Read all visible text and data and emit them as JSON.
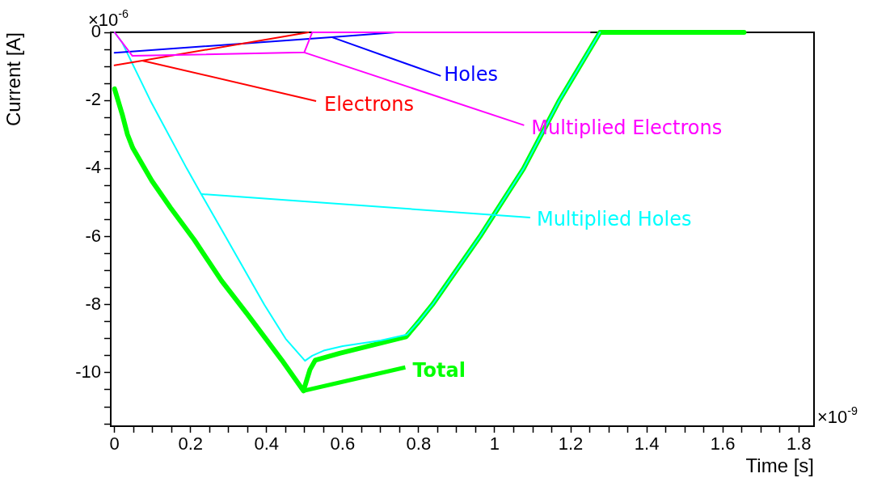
{
  "chart_data": {
    "type": "line",
    "xlabel": "Time [s]",
    "ylabel": "Current [A]",
    "xlim": [
      -0.01,
      1.84
    ],
    "ylim": [
      -11.57,
      0
    ],
    "xticks": [
      0,
      {
        "value": 0.05,
        "label": null
      },
      {
        "value": 0.1,
        "label": null
      },
      {
        "value": 0.15,
        "label": null
      },
      0.2,
      {
        "value": 0.25,
        "label": null
      },
      {
        "value": 0.3,
        "label": null
      },
      {
        "value": 0.35,
        "label": null
      },
      0.4,
      {
        "value": 0.45,
        "label": null
      },
      {
        "value": 0.5,
        "label": null
      },
      {
        "value": 0.55,
        "label": null
      },
      0.6,
      {
        "value": 0.65,
        "label": null
      },
      {
        "value": 0.7,
        "label": null
      },
      {
        "value": 0.75,
        "label": null
      },
      0.8,
      {
        "value": 0.85,
        "label": null
      },
      {
        "value": 0.9,
        "label": null
      },
      {
        "value": 0.95,
        "label": null
      },
      1,
      {
        "value": 1.05,
        "label": null
      },
      {
        "value": 1.1,
        "label": null
      },
      {
        "value": 1.15,
        "label": null
      },
      1.2,
      {
        "value": 1.25,
        "label": null
      },
      {
        "value": 1.3,
        "label": null
      },
      {
        "value": 1.35,
        "label": null
      },
      1.4,
      {
        "value": 1.45,
        "label": null
      },
      {
        "value": 1.5,
        "label": null
      },
      {
        "value": 1.55,
        "label": null
      },
      1.6,
      {
        "value": 1.65,
        "label": null
      },
      {
        "value": 1.7,
        "label": null
      },
      {
        "value": 1.75,
        "label": null
      },
      1.8
    ],
    "yticks": [
      0,
      {
        "value": -0.5,
        "label": null
      },
      {
        "value": -1,
        "label": null
      },
      {
        "value": -1.5,
        "label": null
      },
      -2,
      {
        "value": -2.5,
        "label": null
      },
      {
        "value": -3,
        "label": null
      },
      {
        "value": -3.5,
        "label": null
      },
      -4,
      {
        "value": -4.5,
        "label": null
      },
      {
        "value": -5,
        "label": null
      },
      {
        "value": -5.5,
        "label": null
      },
      -6,
      {
        "value": -6.5,
        "label": null
      },
      {
        "value": -7,
        "label": null
      },
      {
        "value": -7.5,
        "label": null
      },
      -8,
      {
        "value": -8.5,
        "label": null
      },
      {
        "value": -9,
        "label": null
      },
      {
        "value": -9.5,
        "label": null
      },
      -10,
      {
        "value": -10.5,
        "label": null
      },
      {
        "value": -11,
        "label": null
      },
      {
        "value": -11.5,
        "label": null
      }
    ],
    "grid": false,
    "legend": false,
    "marker": "none",
    "line_style": "solid",
    "series": [
      {
        "color": "#00ff00",
        "x": [
          0,
          0.02,
          0.034,
          0.048,
          0.098,
          0.147,
          0.21,
          0.281,
          0.352,
          0.44,
          0.497,
          0.514,
          0.528,
          0.592,
          0.767,
          0.8,
          0.836,
          0.961,
          1.076,
          1.17,
          1.277,
          1.656
        ],
        "values": [
          -1.66,
          -2.4,
          -3.0,
          -3.4,
          -4.36,
          -5.15,
          -6.1,
          -7.29,
          -8.32,
          -9.63,
          -10.53,
          -9.91,
          -9.63,
          -9.43,
          -8.94,
          -8.5,
          -8.0,
          -6.0,
          -4.0,
          -2.0,
          0,
          0
        ]
      },
      {
        "color": "#00ffff",
        "x": [
          0,
          0.02,
          0.094,
          0.19,
          0.228,
          0.292,
          0.394,
          0.45,
          0.501,
          0.52,
          0.55,
          0.6,
          0.7,
          0.769,
          0.8,
          0.836,
          0.961,
          1.076,
          1.17,
          1.277
        ],
        "values": [
          0,
          -0.3,
          -2.0,
          -4.0,
          -4.75,
          -6.0,
          -8.0,
          -9.0,
          -9.65,
          -9.5,
          -9.35,
          -9.22,
          -9.05,
          -8.88,
          -8.5,
          -8.0,
          -6.0,
          -4.0,
          -2.0,
          0
        ]
      },
      {
        "color": "#0000ff",
        "x": [
          0,
          0.571,
          0.74
        ],
        "values": [
          -0.6,
          -0.14,
          0
        ]
      },
      {
        "color": "#ff0000",
        "x": [
          0,
          0.073,
          0.51
        ],
        "values": [
          -0.97,
          -0.83,
          0
        ]
      },
      {
        "color": "#ff00ff",
        "x": [
          0,
          0.047,
          0.499,
          0.52,
          1.25
        ],
        "values": [
          0,
          -0.69,
          -0.59,
          0,
          0
        ]
      }
    ],
    "annotations": [
      "×10$^{-6}$",
      "×10$^{-9}$",
      {
        "text": "Total",
        "x": 0.497,
        "y": -10.53
      },
      {
        "text": "Multiplied Holes",
        "x": 0.228,
        "y": -4.75
      },
      {
        "text": "Holes",
        "x": 0.571,
        "y": -0.14
      },
      {
        "text": "Electrons",
        "x": 0.073,
        "y": -0.83
      },
      {
        "text": "Multiplied Electrons",
        "x": 0.499,
        "y": -0.59
      }
    ]
  }
}
